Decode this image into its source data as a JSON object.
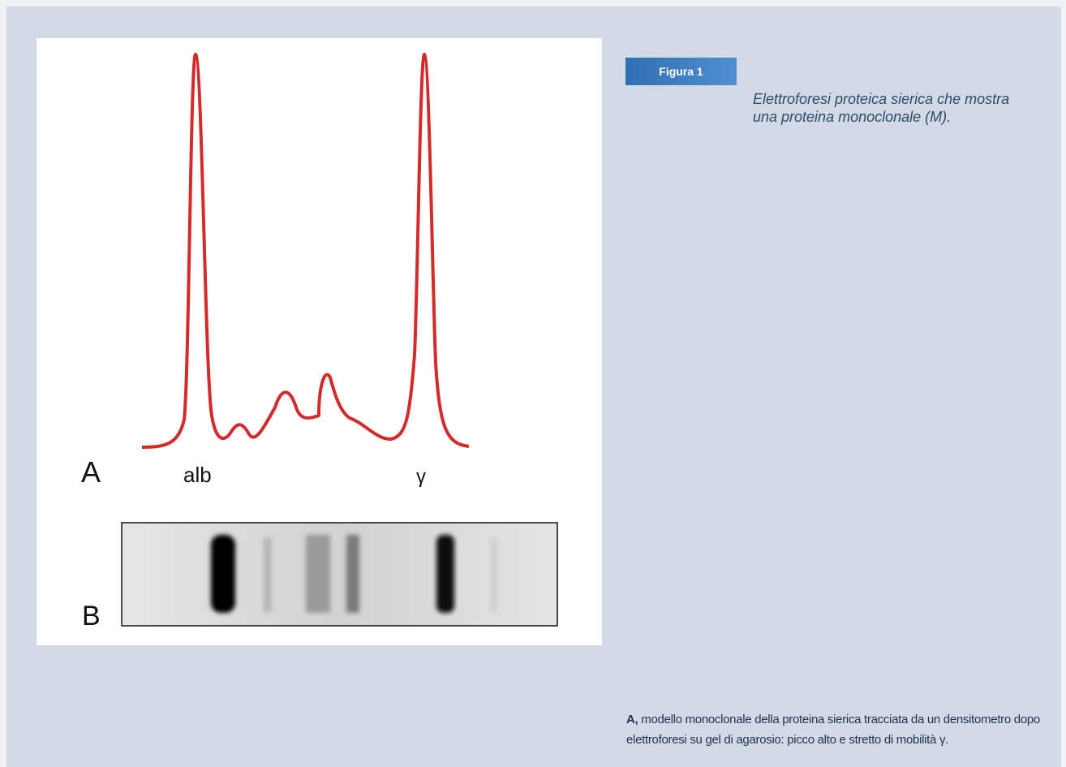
{
  "figure": {
    "label": "Figura 1",
    "caption": "Elettroforesi proteica sierica che mostra una proteina monoclonale (M).",
    "panel_a": {
      "label": "A",
      "peak_labels": [
        "alb",
        "γ"
      ]
    },
    "panel_b": {
      "label": "B"
    }
  },
  "description": {
    "lead": "A,",
    "text": "modello monoclonale della proteina sierica tracciata da un densitometro dopo elettroforesi su gel di agarosio: picco alto e stretto di mobilità γ."
  }
}
